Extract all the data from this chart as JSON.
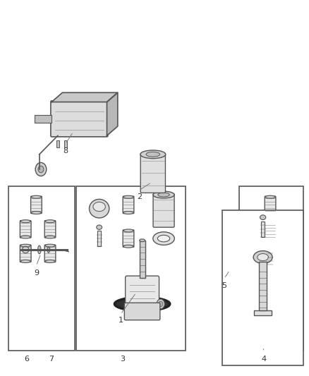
{
  "bg_color": "#ffffff",
  "line_color": "#555555",
  "dark_color": "#333333",
  "fig_width": 4.38,
  "fig_height": 5.33
}
